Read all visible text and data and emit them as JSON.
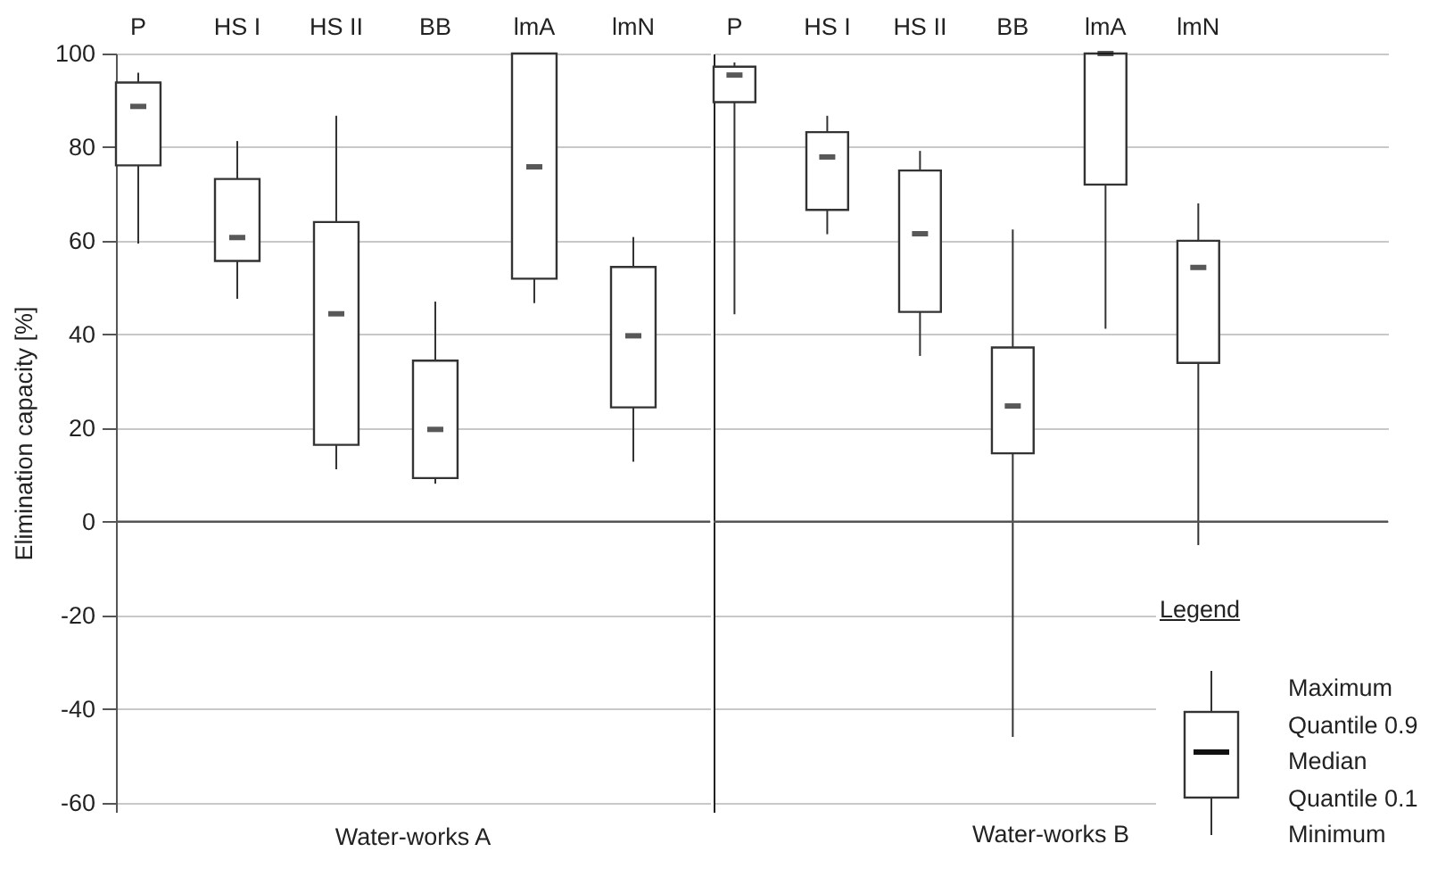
{
  "chart_data": [
    {
      "type": "box",
      "xlabel": "Water-works A",
      "ylabel": "Elimination capacity [%]",
      "categories": [
        "P",
        "HS I",
        "HS II",
        "BB",
        "lmA",
        "lmN"
      ],
      "boxes": [
        {
          "low": 59.4,
          "q1": 76.1,
          "median": 88.7,
          "q3": 93.8,
          "high": 95.9
        },
        {
          "low": 47.6,
          "q1": 55.7,
          "median": 60.7,
          "q3": 73.2,
          "high": 81.3
        },
        {
          "low": 11.2,
          "q1": 16.4,
          "median": 44.4,
          "q3": 64,
          "high": 86.7
        },
        {
          "low": 8.1,
          "q1": 9.3,
          "median": 19.7,
          "q3": 34.4,
          "high": 47
        },
        {
          "low": 46.7,
          "q1": 51.9,
          "median": 75.8,
          "q3": 100,
          "high": 100
        },
        {
          "low": 12.8,
          "q1": 24.4,
          "median": 39.7,
          "q3": 54.4,
          "high": 60.8
        }
      ],
      "ylim": [
        -62,
        100
      ],
      "yticks": [
        -60,
        -40,
        -20,
        0,
        20,
        40,
        60,
        80,
        100
      ],
      "grid": "y",
      "ref_lines": [
        {
          "axis": "y",
          "value": 0,
          "color": "#555555"
        }
      ]
    },
    {
      "type": "box",
      "xlabel": "Water-works B",
      "categories": [
        "P",
        "HS I",
        "HS II",
        "BB",
        "lmA",
        "lmN"
      ],
      "boxes": [
        {
          "low": 44.3,
          "q1": 89.6,
          "median": 95.4,
          "q3": 97.2,
          "high": 98.1
        },
        {
          "low": 61.4,
          "q1": 66.6,
          "median": 77.9,
          "q3": 83.2,
          "high": 86.7
        },
        {
          "low": 35.4,
          "q1": 44.8,
          "median": 61.5,
          "q3": 75,
          "high": 79.2
        },
        {
          "low": -46,
          "q1": 14.6,
          "median": 24.7,
          "q3": 37.2,
          "high": 62.4
        },
        {
          "low": 41.2,
          "q1": 72,
          "median": 100,
          "q3": 100,
          "high": 100
        },
        {
          "low": -5,
          "q1": 33.9,
          "median": 54.3,
          "q3": 60,
          "high": 68
        }
      ],
      "ylim": [
        -62,
        100
      ],
      "yticks": [
        -60,
        -40,
        -20,
        0,
        20,
        40,
        60,
        80,
        100
      ],
      "grid": "y",
      "tick_labels": "x",
      "ref_lines": [
        {
          "axis": "y",
          "value": 0,
          "color": "#555555"
        }
      ],
      "annotations": [
        "Legend",
        "Maximum",
        "Quantile 0.9",
        "Median",
        "Quantile 0.1",
        "Minimum"
      ]
    }
  ]
}
